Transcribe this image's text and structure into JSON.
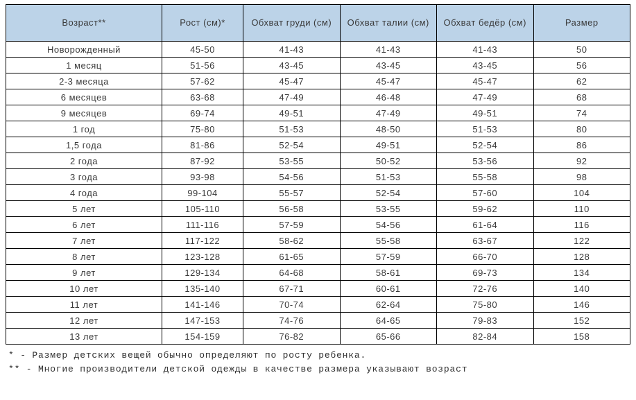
{
  "table": {
    "header_bg": "#bcd3e8",
    "border_color": "#000000",
    "columns": [
      "Возраст**",
      "Рост (см)*",
      "Обхват груди (см)",
      "Обхват талии (см)",
      "Обхват бедёр (см)",
      "Размер"
    ],
    "rows": [
      [
        "Новорожденный",
        "45-50",
        "41-43",
        "41-43",
        "41-43",
        "50"
      ],
      [
        "1 месяц",
        "51-56",
        "43-45",
        "43-45",
        "43-45",
        "56"
      ],
      [
        "2-3 месяца",
        "57-62",
        "45-47",
        "45-47",
        "45-47",
        "62"
      ],
      [
        "6 месяцев",
        "63-68",
        "47-49",
        "46-48",
        "47-49",
        "68"
      ],
      [
        "9 месяцев",
        "69-74",
        "49-51",
        "47-49",
        "49-51",
        "74"
      ],
      [
        "1 год",
        "75-80",
        "51-53",
        "48-50",
        "51-53",
        "80"
      ],
      [
        "1,5 года",
        "81-86",
        "52-54",
        "49-51",
        "52-54",
        "86"
      ],
      [
        "2 года",
        "87-92",
        "53-55",
        "50-52",
        "53-56",
        "92"
      ],
      [
        "3 года",
        "93-98",
        "54-56",
        "51-53",
        "55-58",
        "98"
      ],
      [
        "4 года",
        "99-104",
        "55-57",
        "52-54",
        "57-60",
        "104"
      ],
      [
        "5 лет",
        "105-110",
        "56-58",
        "53-55",
        "59-62",
        "110"
      ],
      [
        "6 лет",
        "111-116",
        "57-59",
        "54-56",
        "61-64",
        "116"
      ],
      [
        "7 лет",
        "117-122",
        "58-62",
        "55-58",
        "63-67",
        "122"
      ],
      [
        "8 лет",
        "123-128",
        "61-65",
        "57-59",
        "66-70",
        "128"
      ],
      [
        "9 лет",
        "129-134",
        "64-68",
        "58-61",
        "69-73",
        "134"
      ],
      [
        "10 лет",
        "135-140",
        "67-71",
        "60-61",
        "72-76",
        "140"
      ],
      [
        "11 лет",
        "141-146",
        "70-74",
        "62-64",
        "75-80",
        "146"
      ],
      [
        "12 лет",
        "147-153",
        "74-76",
        "64-65",
        "79-83",
        "152"
      ],
      [
        "13 лет",
        "154-159",
        "76-82",
        "65-66",
        "82-84",
        "158"
      ]
    ]
  },
  "notes": {
    "line1": "* - Размер детских вещей обычно определяют по росту ребенка.",
    "line2": "** - Многие производители детской одежды в качестве размера указывают возраст"
  }
}
